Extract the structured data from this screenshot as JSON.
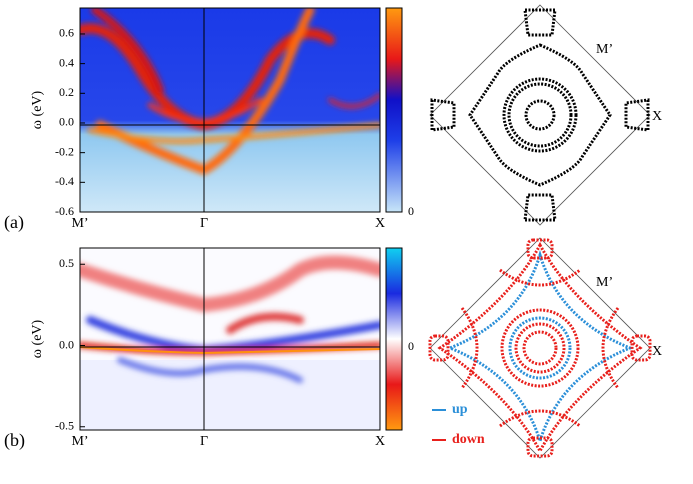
{
  "panels": [
    {
      "label": "(a)",
      "ylabel": "ω (eV)",
      "ylim": [
        -0.6,
        0.775
      ],
      "yticks": [
        0.6,
        0.4,
        0.2,
        {
          "value": 0,
          "label": "0.0"
        },
        -0.2,
        -0.4,
        -0.6
      ],
      "kpoints": [
        "M’",
        "Γ",
        "X"
      ],
      "colorbar_label": "0"
    },
    {
      "label": "(b)",
      "ylabel": "ω (eV)",
      "ylim": [
        -0.52,
        0.6
      ],
      "yticks": [
        0.5,
        {
          "value": 0,
          "label": "0.0"
        },
        -0.5
      ],
      "kpoints": [
        "M’",
        "Γ",
        "X"
      ],
      "colorbar_label": "0"
    }
  ],
  "fermi_surfaces": [
    {
      "labels": [
        "M’",
        "X"
      ]
    },
    {
      "labels": [
        "M’",
        "X"
      ],
      "legend": [
        {
          "name": "up",
          "color": "#2b8fd8"
        },
        {
          "name": "down",
          "color": "#e8201c"
        }
      ]
    }
  ]
}
